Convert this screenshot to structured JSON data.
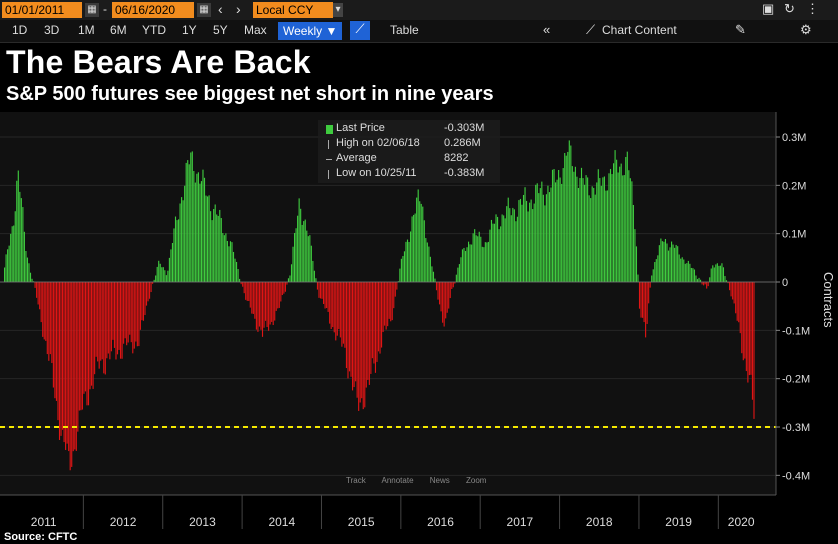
{
  "toolbar": {
    "start_date": "01/01/2011",
    "end_date": "06/16/2020",
    "currency": "Local CCY",
    "timeframes": [
      "1D",
      "3D",
      "1M",
      "6M",
      "YTD",
      "1Y",
      "5Y",
      "Max"
    ],
    "frequency": "Weekly ▼",
    "table_label": "Table",
    "chart_content_label": "Chart Content"
  },
  "title": "The Bears Are Back",
  "subtitle": "S&P 500 futures see biggest net short in nine years",
  "source": "Source: CFTC",
  "legend": {
    "items": [
      {
        "label": "Last Price",
        "value": "-0.303M"
      },
      {
        "label": "High on 02/06/18",
        "value": "0.286M"
      },
      {
        "label": "Average",
        "value": "8282"
      },
      {
        "label": "Low on 10/25/11",
        "value": "-0.383M"
      }
    ]
  },
  "chart_controls": [
    "Track",
    "Annotate",
    "News",
    "Zoom"
  ],
  "colors": {
    "positive": "#3fcc3f",
    "negative": "#e01515",
    "reference": "#f5e900"
  },
  "chart_data": {
    "type": "bar",
    "ylabel": "Contracts",
    "ylim": [
      -0.42,
      0.35
    ],
    "yticks": [
      -0.4,
      -0.3,
      -0.2,
      -0.1,
      0,
      0.1,
      0.2,
      0.3
    ],
    "ytick_labels": [
      "-0.4M",
      "-0.3M",
      "-0.2M",
      "-0.1M",
      "0",
      "0.1M",
      "0.2M",
      "0.3M"
    ],
    "x_years": [
      "2011",
      "2012",
      "2013",
      "2014",
      "2015",
      "2016",
      "2017",
      "2018",
      "2019",
      "2020"
    ],
    "reference_line": -0.3,
    "anchors": [
      [
        2011.0,
        0.03
      ],
      [
        2011.1,
        0.12
      ],
      [
        2011.17,
        0.22
      ],
      [
        2011.28,
        0.06
      ],
      [
        2011.4,
        -0.03
      ],
      [
        2011.55,
        -0.15
      ],
      [
        2011.7,
        -0.3
      ],
      [
        2011.82,
        -0.383
      ],
      [
        2012.0,
        -0.25
      ],
      [
        2012.2,
        -0.17
      ],
      [
        2012.45,
        -0.14
      ],
      [
        2012.7,
        -0.12
      ],
      [
        2012.82,
        -0.03
      ],
      [
        2012.95,
        0.04
      ],
      [
        2013.05,
        0.02
      ],
      [
        2013.2,
        0.16
      ],
      [
        2013.35,
        0.26
      ],
      [
        2013.5,
        0.2
      ],
      [
        2013.7,
        0.13
      ],
      [
        2013.85,
        0.08
      ],
      [
        2014.05,
        -0.04
      ],
      [
        2014.25,
        -0.11
      ],
      [
        2014.45,
        -0.06
      ],
      [
        2014.6,
        0.02
      ],
      [
        2014.72,
        0.17
      ],
      [
        2014.85,
        0.08
      ],
      [
        2014.95,
        -0.02
      ],
      [
        2015.1,
        -0.08
      ],
      [
        2015.3,
        -0.15
      ],
      [
        2015.45,
        -0.26
      ],
      [
        2015.6,
        -0.21
      ],
      [
        2015.75,
        -0.12
      ],
      [
        2015.87,
        -0.08
      ],
      [
        2016.0,
        0.04
      ],
      [
        2016.12,
        0.12
      ],
      [
        2016.25,
        0.18
      ],
      [
        2016.35,
        0.06
      ],
      [
        2016.45,
        -0.02
      ],
      [
        2016.55,
        -0.1
      ],
      [
        2016.63,
        -0.02
      ],
      [
        2016.75,
        0.05
      ],
      [
        2016.9,
        0.1
      ],
      [
        2017.05,
        0.08
      ],
      [
        2017.2,
        0.13
      ],
      [
        2017.4,
        0.15
      ],
      [
        2017.6,
        0.17
      ],
      [
        2017.8,
        0.19
      ],
      [
        2017.95,
        0.21
      ],
      [
        2018.1,
        0.27
      ],
      [
        2018.3,
        0.2
      ],
      [
        2018.5,
        0.2
      ],
      [
        2018.7,
        0.24
      ],
      [
        2018.85,
        0.25
      ],
      [
        2018.95,
        0.12
      ],
      [
        2019.0,
        -0.05
      ],
      [
        2019.08,
        -0.12
      ],
      [
        2019.15,
        0.02
      ],
      [
        2019.3,
        0.09
      ],
      [
        2019.45,
        0.07
      ],
      [
        2019.6,
        0.04
      ],
      [
        2019.75,
        0.01
      ],
      [
        2019.85,
        -0.02
      ],
      [
        2019.92,
        0.04
      ],
      [
        2020.05,
        0.03
      ],
      [
        2020.15,
        -0.02
      ],
      [
        2020.28,
        -0.12
      ],
      [
        2020.4,
        -0.22
      ],
      [
        2020.46,
        -0.303
      ]
    ]
  }
}
